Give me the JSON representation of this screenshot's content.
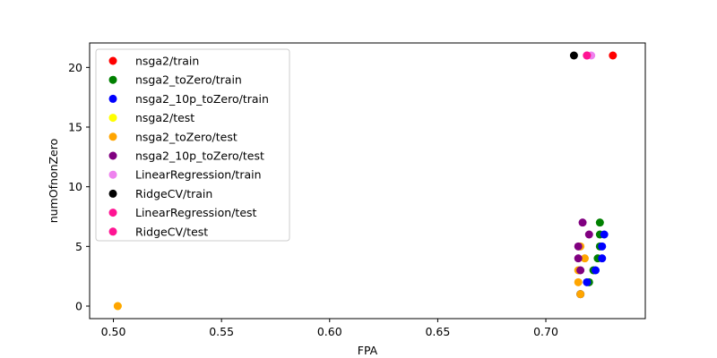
{
  "chart_data": {
    "type": "scatter",
    "xlabel": "FPA",
    "ylabel": "numOfnonZero",
    "xlim": [
      0.489,
      0.746
    ],
    "ylim": [
      -1.05,
      22.05
    ],
    "xticks": [
      0.5,
      0.55,
      0.6,
      0.65,
      0.7
    ],
    "xtick_labels": [
      "0.50",
      "0.55",
      "0.60",
      "0.65",
      "0.70"
    ],
    "yticks": [
      0,
      5,
      10,
      15,
      20
    ],
    "ytick_labels": [
      "0",
      "5",
      "10",
      "15",
      "20"
    ],
    "grid": false,
    "legend_position": "upper left",
    "series": [
      {
        "name": "nsga2/train",
        "color": "#ff0000",
        "x": [
          0.731
        ],
        "y": [
          21
        ]
      },
      {
        "name": "nsga2_toZero/train",
        "color": "#008000",
        "x": [
          0.725,
          0.725,
          0.725,
          0.724,
          0.722,
          0.72,
          0.716
        ],
        "y": [
          7,
          6,
          5,
          4,
          3,
          2,
          1
        ]
      },
      {
        "name": "nsga2_10p_toZero/train",
        "color": "#0000ff",
        "x": [
          0.727,
          0.726,
          0.726,
          0.723,
          0.719,
          0.716
        ],
        "y": [
          6,
          5,
          4,
          3,
          2,
          1
        ]
      },
      {
        "name": "nsga2/test",
        "color": "#ffff00",
        "x": [
          0.502
        ],
        "y": [
          0
        ]
      },
      {
        "name": "nsga2_toZero/test",
        "color": "#ffa500",
        "x": [
          0.716,
          0.718,
          0.715,
          0.715,
          0.716,
          0.502
        ],
        "y": [
          5,
          4,
          3,
          2,
          1,
          0
        ]
      },
      {
        "name": "nsga2_10p_toZero/test",
        "color": "#800080",
        "x": [
          0.717,
          0.72,
          0.715,
          0.715,
          0.716
        ],
        "y": [
          7,
          6,
          5,
          4,
          3
        ]
      },
      {
        "name": "LinearRegression/train",
        "color": "#ee82ee",
        "x": [
          0.721
        ],
        "y": [
          21
        ]
      },
      {
        "name": "RidgeCV/train",
        "color": "#000000",
        "x": [
          0.713
        ],
        "y": [
          21
        ]
      },
      {
        "name": "LinearRegression/test",
        "color": "#ff1493",
        "x": [
          0.719
        ],
        "y": [
          21
        ]
      },
      {
        "name": "RidgeCV/test",
        "color": "#ff1493",
        "x": [
          0.719
        ],
        "y": [
          21
        ]
      }
    ]
  }
}
